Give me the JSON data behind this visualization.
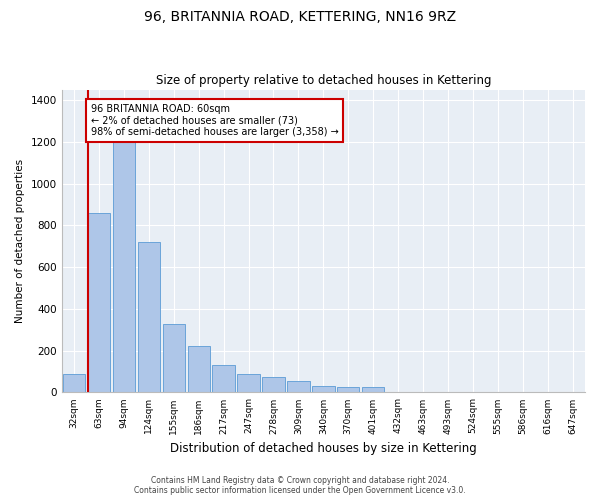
{
  "title": "96, BRITANNIA ROAD, KETTERING, NN16 9RZ",
  "subtitle": "Size of property relative to detached houses in Kettering",
  "xlabel": "Distribution of detached houses by size in Kettering",
  "ylabel": "Number of detached properties",
  "categories": [
    "32sqm",
    "63sqm",
    "94sqm",
    "124sqm",
    "155sqm",
    "186sqm",
    "217sqm",
    "247sqm",
    "278sqm",
    "309sqm",
    "340sqm",
    "370sqm",
    "401sqm",
    "432sqm",
    "463sqm",
    "493sqm",
    "524sqm",
    "555sqm",
    "586sqm",
    "616sqm",
    "647sqm"
  ],
  "values": [
    90,
    860,
    1200,
    720,
    330,
    220,
    130,
    90,
    75,
    55,
    30,
    28,
    28,
    0,
    0,
    0,
    0,
    0,
    0,
    0,
    0
  ],
  "bar_color": "#aec6e8",
  "bar_edgecolor": "#5b9bd5",
  "highlight_line_color": "#cc0000",
  "highlight_bar_index": 1,
  "annotation_text": "96 BRITANNIA ROAD: 60sqm\n← 2% of detached houses are smaller (73)\n98% of semi-detached houses are larger (3,358) →",
  "annotation_box_color": "#cc0000",
  "ylim": [
    0,
    1450
  ],
  "yticks": [
    0,
    200,
    400,
    600,
    800,
    1000,
    1200,
    1400
  ],
  "footer_line1": "Contains HM Land Registry data © Crown copyright and database right 2024.",
  "footer_line2": "Contains public sector information licensed under the Open Government Licence v3.0.",
  "plot_bg_color": "#e8eef5"
}
